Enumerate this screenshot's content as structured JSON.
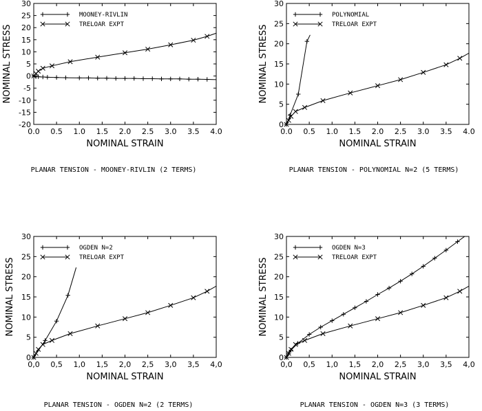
{
  "chart_data": [
    {
      "type": "line",
      "caption": "PLANAR TENSION - MOONEY-RIVLIN (2 TERMS)",
      "xlabel": "NOMINAL STRAIN",
      "ylabel": "NOMINAL STRESS",
      "xlim": [
        0,
        4.0
      ],
      "ylim": [
        -20,
        30
      ],
      "xticks": [
        "0.0",
        "0.5",
        "1.0",
        "1.5",
        "2.0",
        "2.5",
        "3.0",
        "3.5",
        "4.0"
      ],
      "yticks": [
        "-20",
        "-15",
        "-10",
        "-5",
        "0",
        "5",
        "10",
        "15",
        "20",
        "25",
        "30"
      ],
      "xtick_values": [
        0,
        0.5,
        1,
        1.5,
        2,
        2.5,
        3,
        3.5,
        4
      ],
      "ytick_values": [
        -20,
        -15,
        -10,
        -5,
        0,
        5,
        10,
        15,
        20,
        25,
        30
      ],
      "legend_position": "top-left",
      "series": [
        {
          "name": "MOONEY-RIVLIN",
          "marker": "plus",
          "x": [
            0,
            0.05,
            0.1,
            0.2,
            0.3,
            0.5,
            0.7,
            1.0,
            1.2,
            1.4,
            1.6,
            1.8,
            2.0,
            2.2,
            2.4,
            2.6,
            2.8,
            3.0,
            3.2,
            3.4,
            3.6,
            3.8,
            4.05
          ],
          "y": [
            0,
            -0.2,
            -0.3,
            -0.4,
            -0.5,
            -0.6,
            -0.7,
            -0.8,
            -0.8,
            -0.9,
            -0.9,
            -1.0,
            -1.0,
            -1.0,
            -1.1,
            -1.1,
            -1.2,
            -1.2,
            -1.2,
            -1.3,
            -1.3,
            -1.4,
            -1.5
          ]
        },
        {
          "name": "TRELOAR EXPT",
          "marker": "cross",
          "x": [
            0,
            0.05,
            0.1,
            0.2,
            0.4,
            0.8,
            1.4,
            2.0,
            2.5,
            3.0,
            3.5,
            3.8,
            4.05
          ],
          "y": [
            0,
            1.0,
            2.0,
            3.2,
            4.2,
            5.9,
            7.8,
            9.6,
            11.1,
            12.9,
            14.8,
            16.4,
            18.0
          ]
        }
      ]
    },
    {
      "type": "line",
      "caption": "PLANAR TENSION - POLYNOMIAL N=2 (5 TERMS)",
      "xlabel": "NOMINAL STRAIN",
      "ylabel": "NOMINAL STRESS",
      "xlim": [
        0,
        4.0
      ],
      "ylim": [
        0,
        30
      ],
      "xticks": [
        "0.0",
        "0.5",
        "1.0",
        "1.5",
        "2.0",
        "2.5",
        "3.0",
        "3.5",
        "4.0"
      ],
      "yticks": [
        "0",
        "5",
        "10",
        "15",
        "20",
        "25",
        "30"
      ],
      "xtick_values": [
        0,
        0.5,
        1,
        1.5,
        2,
        2.5,
        3,
        3.5,
        4
      ],
      "ytick_values": [
        0,
        5,
        10,
        15,
        20,
        25,
        30
      ],
      "legend_position": "top-left",
      "series": [
        {
          "name": "POLYNOMIAL",
          "marker": "plus",
          "x": [
            0,
            0.08,
            0.26,
            0.45,
            0.52
          ],
          "y": [
            0,
            2.3,
            7.5,
            20.6,
            22.2
          ],
          "marker_index": [
            0,
            1,
            2,
            3
          ]
        },
        {
          "name": "TRELOAR EXPT",
          "marker": "cross",
          "x": [
            0,
            0.05,
            0.1,
            0.2,
            0.4,
            0.8,
            1.4,
            2.0,
            2.5,
            3.0,
            3.5,
            3.8,
            4.05
          ],
          "y": [
            0,
            1.0,
            2.0,
            3.2,
            4.2,
            5.9,
            7.8,
            9.6,
            11.1,
            12.9,
            14.8,
            16.4,
            18.0
          ]
        }
      ]
    },
    {
      "type": "line",
      "caption": "PLANAR TENSION - OGDEN N=2 (2 TERMS)",
      "xlabel": "NOMINAL STRAIN",
      "ylabel": "NOMINAL STRESS",
      "xlim": [
        0,
        4.0
      ],
      "ylim": [
        0,
        30
      ],
      "xticks": [
        "0,0",
        "0,5",
        "1,0",
        "1,5",
        "2,0",
        "2,5",
        "3,0",
        "3,5",
        "4,0"
      ],
      "yticks": [
        "0",
        "5",
        "10",
        "15",
        "20",
        "25",
        "30"
      ],
      "xtick_values": [
        0,
        0.5,
        1,
        1.5,
        2,
        2.5,
        3,
        3.5,
        4
      ],
      "ytick_values": [
        0,
        5,
        10,
        15,
        20,
        25,
        30
      ],
      "legend_position": "top-left",
      "series": [
        {
          "name": "OGDEN N=2",
          "marker": "plus",
          "x": [
            0,
            0.25,
            0.5,
            0.75,
            0.93
          ],
          "y": [
            0,
            4.2,
            9.0,
            15.4,
            22.3
          ],
          "marker_index": [
            0,
            1,
            2,
            3
          ]
        },
        {
          "name": "TRELOAR EXPT",
          "marker": "cross",
          "x": [
            0,
            0.05,
            0.1,
            0.2,
            0.4,
            0.8,
            1.4,
            2.0,
            2.5,
            3.0,
            3.5,
            3.8,
            4.05
          ],
          "y": [
            0,
            1.0,
            2.0,
            3.2,
            4.2,
            5.9,
            7.8,
            9.6,
            11.1,
            12.9,
            14.8,
            16.4,
            18.0
          ]
        }
      ]
    },
    {
      "type": "line",
      "caption": "PLANAR TENSION - OGDEN N=3 (3 TERMS)",
      "xlabel": "NOMINAL STRAIN",
      "ylabel": "NOMINAL STRESS",
      "xlim": [
        0,
        4.0
      ],
      "ylim": [
        0,
        30
      ],
      "xticks": [
        "0,0",
        "0,5",
        "1,0",
        "1,5",
        "2,0",
        "2,5",
        "3,0",
        "3,5",
        "4,0"
      ],
      "yticks": [
        "0",
        "5",
        "10",
        "15",
        "20",
        "25",
        "30"
      ],
      "xtick_values": [
        0,
        0.5,
        1,
        1.5,
        2,
        2.5,
        3,
        3.5,
        4
      ],
      "ytick_values": [
        0,
        5,
        10,
        15,
        20,
        25,
        30
      ],
      "legend_position": "top-left",
      "series": [
        {
          "name": "OGDEN N=3",
          "marker": "plus",
          "x": [
            0,
            0.05,
            0.1,
            0.25,
            0.5,
            0.75,
            1.0,
            1.25,
            1.5,
            1.75,
            2.0,
            2.25,
            2.5,
            2.75,
            3.0,
            3.25,
            3.5,
            3.75,
            4.05
          ],
          "y": [
            0,
            1.0,
            1.8,
            3.5,
            5.7,
            7.5,
            9.1,
            10.7,
            12.3,
            13.9,
            15.6,
            17.2,
            18.9,
            20.7,
            22.6,
            24.6,
            26.6,
            28.7,
            31.2
          ]
        },
        {
          "name": "TRELOAR EXPT",
          "marker": "cross",
          "x": [
            0,
            0.05,
            0.1,
            0.2,
            0.4,
            0.8,
            1.4,
            2.0,
            2.5,
            3.0,
            3.5,
            3.8,
            4.05
          ],
          "y": [
            0,
            1.0,
            2.0,
            3.2,
            4.2,
            5.9,
            7.8,
            9.6,
            11.1,
            12.9,
            14.8,
            16.4,
            18.0
          ]
        }
      ]
    }
  ]
}
